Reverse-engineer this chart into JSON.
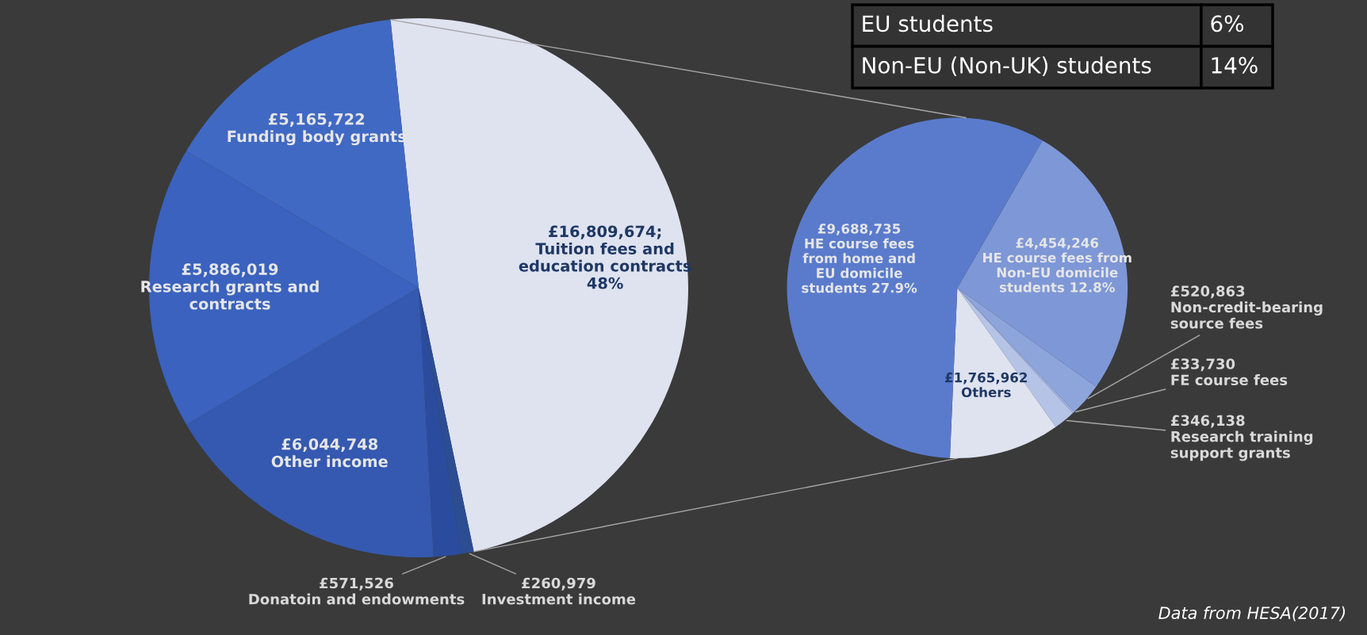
{
  "chart_data": [
    {
      "type": "pie",
      "categories": [
        "Tuition fees and\neducation contracts\n48%",
        "Investment income",
        "Donatoin and endowments",
        "Other income",
        "Research grants and\ncontracts",
        "Funding body grants"
      ],
      "values": [
        16809674,
        260979,
        571526,
        6044748,
        5886019,
        5165722
      ],
      "value_labels": [
        "£16,809,674;",
        "£260,979",
        "£571,526",
        "£6,044,748",
        "£5,886,019",
        "£5,165,722"
      ],
      "colors": [
        "#dfe3f0",
        "#2c4d92",
        "#2b4c9e",
        "#3559b0",
        "#3a62be",
        "#4069c4"
      ],
      "legend": false
    },
    {
      "type": "pie",
      "categories": [
        "HE course fees from\nNon-EU domicile\nstudents 12.8%",
        "Non-credit-bearing\nsource fees",
        "FE course fees",
        "Research training\nsupport grants",
        "Others",
        "HE course fees\nfrom home and\nEU domicile\nstudents 27.9%"
      ],
      "values": [
        4454246,
        520863,
        33730,
        346138,
        1765962,
        9688735
      ],
      "value_labels": [
        "£4,454,246",
        "£520,863",
        "£33,730",
        "£346,138",
        "£1,765,962",
        "£9,688,735"
      ],
      "colors": [
        "#7e97d6",
        "#8ea5dc",
        "#a0b3e0",
        "#b4c3e6",
        "#dfe3f0",
        "#5a7bcc"
      ],
      "legend": false,
      "annotations": [
        "Data from HESA(2017)"
      ]
    },
    {
      "type": "other",
      "annotations": [
        "EU students",
        "6%",
        "Non-EU (Non-UK) students",
        "14%"
      ]
    }
  ]
}
